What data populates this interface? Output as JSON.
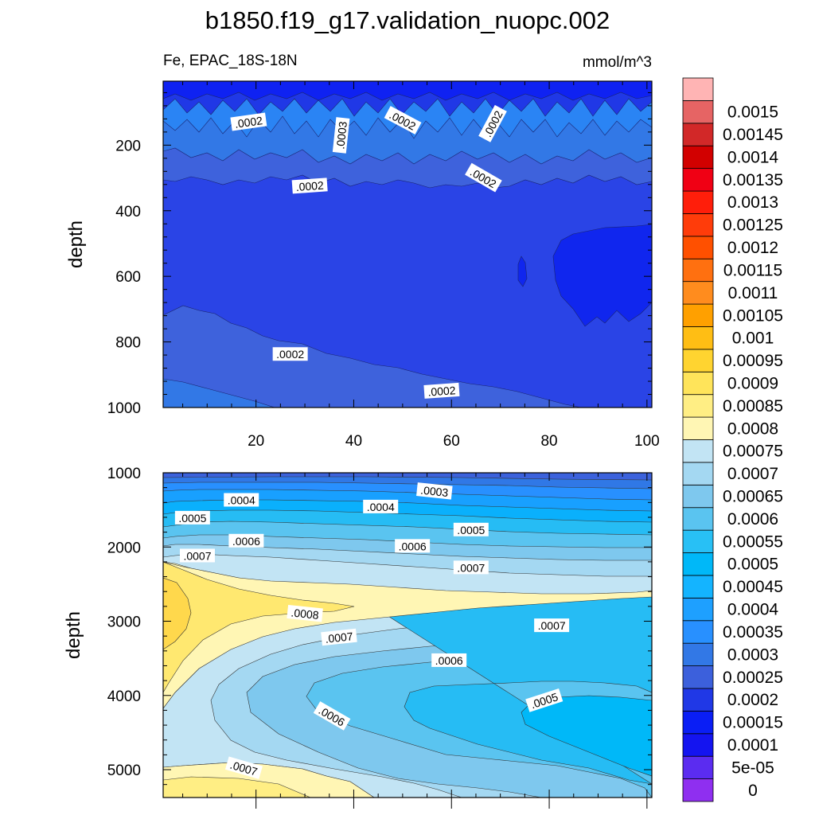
{
  "chart_data": {
    "type": "contour",
    "title": "b1850.f19_g17.validation_nuopc.002",
    "left_label": "Fe, EPAC_18S-18N",
    "right_label": "mmol/m^3",
    "colorbar": {
      "levels": [
        "0",
        "5e-05",
        "0.0001",
        "0.00015",
        "0.0002",
        "0.00025",
        "0.0003",
        "0.00035",
        "0.0004",
        "0.00045",
        "0.0005",
        "0.00055",
        "0.0006",
        "0.00065",
        "0.0007",
        "0.00075",
        "0.0008",
        "0.00085",
        "0.0009",
        "0.00095",
        "0.001",
        "0.00105",
        "0.0011",
        "0.00115",
        "0.0012",
        "0.00125",
        "0.0013",
        "0.00135",
        "0.0014",
        "0.00145",
        "0.0015"
      ],
      "colors": [
        "#8f2ff0",
        "#5b2cf0",
        "#1414f0",
        "#0a1ef5",
        "#2038e6",
        "#3c60dc",
        "#3278e6",
        "#2890ff",
        "#1ea0ff",
        "#14b4ff",
        "#00b8f8",
        "#28c0f5",
        "#5ac4f0",
        "#7ec8ee",
        "#a4d8f2",
        "#c2e4f4",
        "#fff6b4",
        "#ffee84",
        "#ffe45a",
        "#ffd430",
        "#ffbe14",
        "#ffa000",
        "#ff8c1e",
        "#ff7010",
        "#ff5000",
        "#ff3c0a",
        "#ff1e0a",
        "#f00014",
        "#d20000",
        "#d22828",
        "#e66464",
        "#ffb4b4"
      ]
    },
    "panels": [
      {
        "name": "upper",
        "xlim": [
          1,
          101
        ],
        "ylim": [
          1000,
          5
        ],
        "xticks": [
          20,
          40,
          60,
          80,
          100
        ],
        "yticks": [
          200,
          400,
          600,
          800,
          1000
        ],
        "ylabel": "depth",
        "contour_labels": [
          {
            "text": ".0002",
            "x": 18.5,
            "depth": 130,
            "angle": -8
          },
          {
            "text": ".0002",
            "x": 50,
            "depth": 125,
            "angle": 28
          },
          {
            "text": ".0002",
            "x": 68.5,
            "depth": 135,
            "angle": -62
          },
          {
            "text": ".0003",
            "x": 37.5,
            "depth": 170,
            "angle": -84
          },
          {
            "text": ".0002",
            "x": 31,
            "depth": 325,
            "angle": -4
          },
          {
            "text": ".0002",
            "x": 66.5,
            "depth": 300,
            "angle": 30
          },
          {
            "text": ".0002",
            "x": 27,
            "depth": 838,
            "angle": 0
          },
          {
            "text": ".0002",
            "x": 58,
            "depth": 950,
            "angle": -4
          }
        ]
      },
      {
        "name": "lower",
        "xlim": [
          1,
          101
        ],
        "ylim": [
          5375,
          1000
        ],
        "yticks": [
          1000,
          2000,
          3000,
          4000,
          5000
        ],
        "ylabel": "depth",
        "contour_labels": [
          {
            "text": ".0003",
            "x": 56.5,
            "depth": 1250,
            "angle": 6
          },
          {
            "text": ".0004",
            "x": 17,
            "depth": 1370,
            "angle": 0
          },
          {
            "text": ".0004",
            "x": 45.5,
            "depth": 1460,
            "angle": 0
          },
          {
            "text": ".0005",
            "x": 7,
            "depth": 1610,
            "angle": 0
          },
          {
            "text": ".0005",
            "x": 64,
            "depth": 1770,
            "angle": 0
          },
          {
            "text": ".0006",
            "x": 18,
            "depth": 1920,
            "angle": 0
          },
          {
            "text": ".0006",
            "x": 52,
            "depth": 1990,
            "angle": 0
          },
          {
            "text": ".0007",
            "x": 8,
            "depth": 2120,
            "angle": 0
          },
          {
            "text": ".0007",
            "x": 64,
            "depth": 2280,
            "angle": 0
          },
          {
            "text": ".0008",
            "x": 30,
            "depth": 2900,
            "angle": 6
          },
          {
            "text": ".0007",
            "x": 37,
            "depth": 3220,
            "angle": -6
          },
          {
            "text": ".0007",
            "x": 80.5,
            "depth": 3060,
            "angle": 0
          },
          {
            "text": ".0006",
            "x": 59.5,
            "depth": 3530,
            "angle": 0
          },
          {
            "text": ".0005",
            "x": 79,
            "depth": 4070,
            "angle": -18
          },
          {
            "text": ".0006",
            "x": 35.5,
            "depth": 4280,
            "angle": 30
          },
          {
            "text": ".0007",
            "x": 17.5,
            "depth": 4980,
            "angle": 16
          }
        ]
      }
    ]
  }
}
